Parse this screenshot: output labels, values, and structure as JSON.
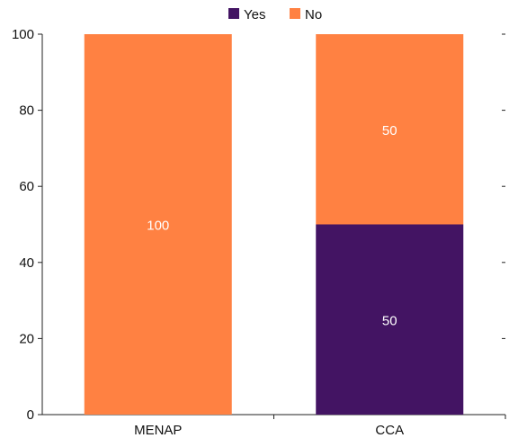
{
  "chart_data": {
    "type": "bar",
    "stacked": true,
    "categories": [
      "MENAP",
      "CCA"
    ],
    "series": [
      {
        "name": "Yes",
        "values": [
          0,
          50
        ],
        "labels": [
          "",
          "50"
        ],
        "color": "#431463"
      },
      {
        "name": "No",
        "values": [
          100,
          50
        ],
        "labels": [
          "100",
          "50"
        ],
        "color": "#FF8142"
      }
    ],
    "ylim": [
      0,
      100
    ],
    "yticks": [
      "0",
      "20",
      "40",
      "60",
      "80",
      "100"
    ],
    "title": "",
    "xlabel": "",
    "ylabel": "",
    "legend": "top-center"
  }
}
